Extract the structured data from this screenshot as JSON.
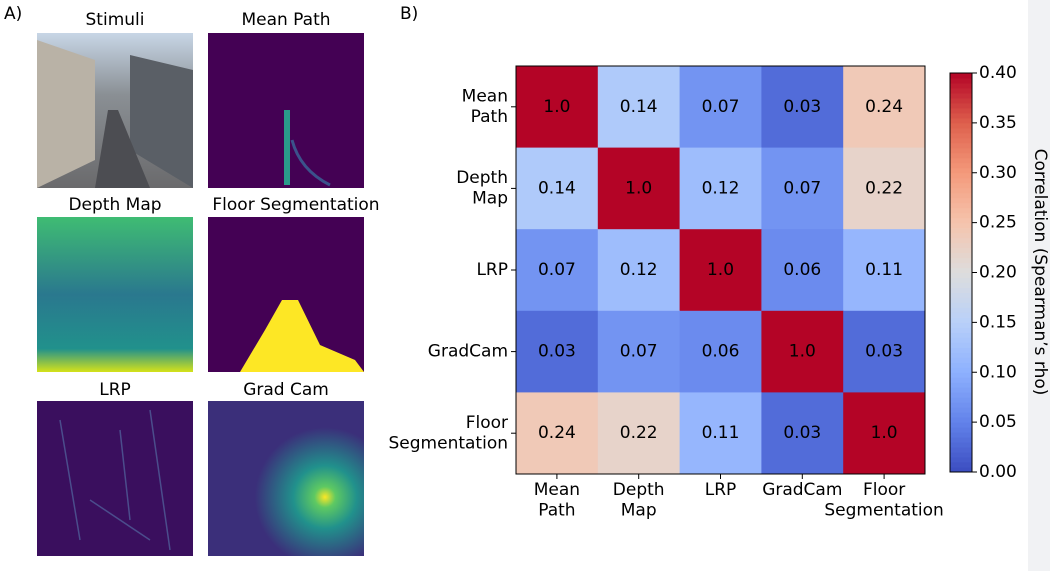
{
  "panel_a": {
    "label": "A)",
    "titles": [
      "Stimuli",
      "Mean Path",
      "Depth Map",
      "Floor Segmentation",
      "LRP",
      "Grad Cam"
    ]
  },
  "chart_data": {
    "type": "heatmap",
    "panel_label": "B)",
    "x_categories": [
      "Mean\nPath",
      "Depth\nMap",
      "LRP",
      "GradCam",
      "Floor\nSegmentation"
    ],
    "y_categories": [
      "Mean\nPath",
      "Depth\nMap",
      "LRP",
      "GradCam",
      "Floor\nSegmentation"
    ],
    "values": [
      [
        1.0,
        0.14,
        0.07,
        0.03,
        0.24
      ],
      [
        0.14,
        1.0,
        0.12,
        0.07,
        0.22
      ],
      [
        0.07,
        0.12,
        1.0,
        0.06,
        0.11
      ],
      [
        0.03,
        0.07,
        0.06,
        1.0,
        0.03
      ],
      [
        0.24,
        0.22,
        0.11,
        0.03,
        1.0
      ]
    ],
    "value_labels": [
      [
        "1.0",
        "0.14",
        "0.07",
        "0.03",
        "0.24"
      ],
      [
        "0.14",
        "1.0",
        "0.12",
        "0.07",
        "0.22"
      ],
      [
        "0.07",
        "0.12",
        "1.0",
        "0.06",
        "0.11"
      ],
      [
        "0.03",
        "0.07",
        "0.06",
        "1.0",
        "0.03"
      ],
      [
        "0.24",
        "0.22",
        "0.11",
        "0.03",
        "1.0"
      ]
    ],
    "colormap": "coolwarm",
    "zlim": [
      0,
      0.4
    ],
    "zticks": [
      {
        "value": 0,
        "label": "0.00"
      },
      {
        "value": 0.05,
        "label": "0.05"
      },
      {
        "value": 0.1,
        "label": "0.10"
      },
      {
        "value": 0.15,
        "label": "0.15"
      },
      {
        "value": 0.2,
        "label": "0.20"
      },
      {
        "value": 0.25,
        "label": "0.25"
      },
      {
        "value": 0.3,
        "label": "0.30"
      },
      {
        "value": 0.35,
        "label": "0.35"
      },
      {
        "value": 0.4,
        "label": "0.40"
      }
    ],
    "colorbar_label": "Correlation (Spearman’s rho)"
  }
}
